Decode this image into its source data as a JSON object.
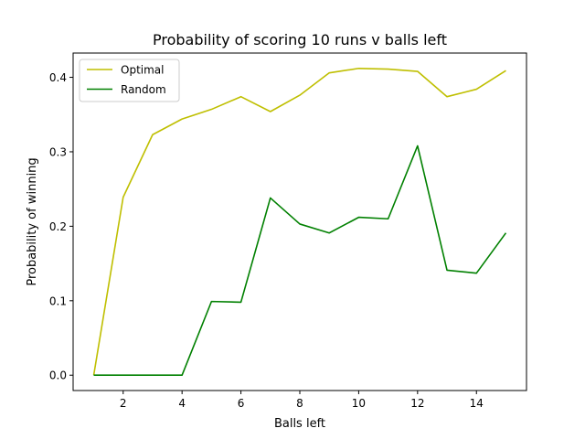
{
  "chart_data": {
    "type": "line",
    "title": "Probability of scoring 10 runs v balls left",
    "xlabel": "Balls left",
    "ylabel": "Probability of winning",
    "x": [
      1,
      2,
      3,
      4,
      5,
      6,
      7,
      8,
      9,
      10,
      11,
      12,
      13,
      14,
      15
    ],
    "xlim": [
      0.3,
      15.7
    ],
    "ylim": [
      -0.0206,
      0.4326
    ],
    "xticks": [
      2,
      4,
      6,
      8,
      10,
      12,
      14
    ],
    "yticks": [
      0.0,
      0.1,
      0.2,
      0.3,
      0.4
    ],
    "xtick_labels": [
      "2",
      "4",
      "6",
      "8",
      "10",
      "12",
      "14"
    ],
    "ytick_labels": [
      "0.0",
      "0.1",
      "0.2",
      "0.3",
      "0.4"
    ],
    "grid": false,
    "legend_position": "upper-left",
    "series": [
      {
        "name": "Optimal",
        "color": "#bfbf00",
        "values": [
          0.0,
          0.239,
          0.323,
          0.344,
          0.357,
          0.374,
          0.354,
          0.376,
          0.406,
          0.412,
          0.411,
          0.408,
          0.374,
          0.384,
          0.409
        ]
      },
      {
        "name": "Random",
        "color": "#008000",
        "values": [
          0.0,
          0.0,
          0.0,
          0.0,
          0.099,
          0.098,
          0.238,
          0.203,
          0.191,
          0.212,
          0.21,
          0.308,
          0.141,
          0.137,
          0.191
        ]
      }
    ]
  }
}
